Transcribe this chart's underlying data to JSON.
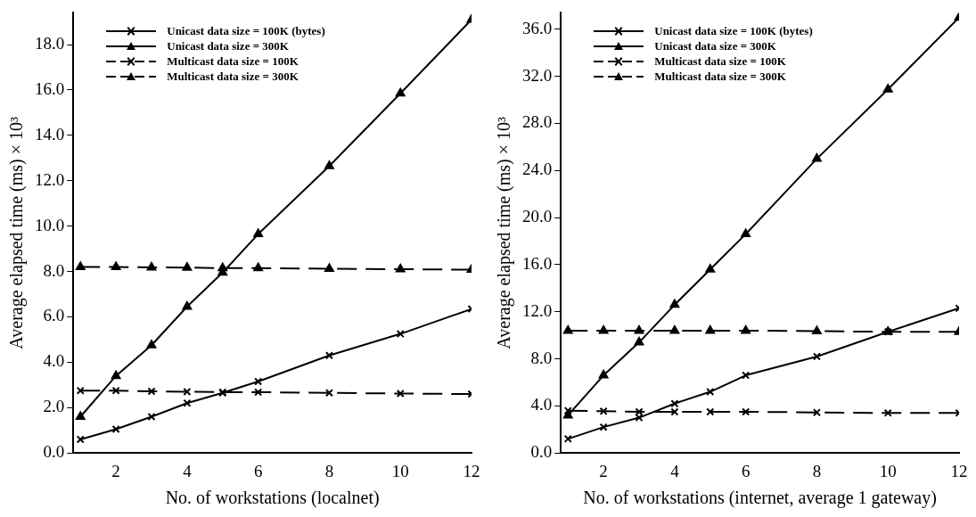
{
  "chart_data": [
    {
      "type": "line",
      "xlabel": "No. of workstations (localnet)",
      "ylabel": "Average elapsed time (ms) × 10³",
      "x": [
        1,
        2,
        3,
        4,
        5,
        6,
        8,
        10,
        12
      ],
      "xlim": [
        0.8,
        12
      ],
      "xticks": [
        2,
        4,
        6,
        8,
        10,
        12
      ],
      "ylim": [
        0,
        19.4
      ],
      "yticks": [
        {
          "value": 0,
          "label": "0.0"
        },
        {
          "value": 2,
          "label": "2.0"
        },
        {
          "value": 4,
          "label": "4.0"
        },
        {
          "value": 6,
          "label": "6.0"
        },
        {
          "value": 8,
          "label": "8.0"
        },
        {
          "value": 10,
          "label": "10.0"
        },
        {
          "value": 12,
          "label": "12.0"
        },
        {
          "value": 14,
          "label": "14.0"
        },
        {
          "value": 16,
          "label": "16.0"
        },
        {
          "value": 18,
          "label": "18.0"
        }
      ],
      "grid": false,
      "legend": "top left",
      "series": [
        {
          "name": "Unicast data size = 100K (bytes)",
          "color": "#000000",
          "marker": "cross",
          "line_style": "solid",
          "values": [
            0.6,
            1.05,
            1.6,
            2.2,
            2.65,
            3.15,
            4.3,
            5.25,
            6.35
          ]
        },
        {
          "name": "Unicast data size = 300K",
          "color": "#000000",
          "marker": "triangle",
          "line_style": "solid",
          "values": [
            1.6,
            3.4,
            4.75,
            6.45,
            7.95,
            9.65,
            12.65,
            15.85,
            19.1
          ]
        },
        {
          "name": "Multicast data size = 100K",
          "color": "#000000",
          "marker": "cross",
          "line_style": "dashed",
          "values": [
            2.75,
            2.75,
            2.72,
            2.7,
            2.68,
            2.68,
            2.65,
            2.62,
            2.6
          ]
        },
        {
          "name": "Multicast data size = 300K",
          "color": "#000000",
          "marker": "triangle",
          "line_style": "dashed",
          "values": [
            8.2,
            8.2,
            8.18,
            8.17,
            8.15,
            8.15,
            8.12,
            8.1,
            8.08
          ]
        }
      ]
    },
    {
      "type": "line",
      "xlabel": "No. of workstations (internet, average 1 gateway)",
      "ylabel": "Average elapsed time (ms) × 10³",
      "x": [
        1,
        2,
        3,
        4,
        5,
        6,
        8,
        10,
        12
      ],
      "xlim": [
        0.8,
        12
      ],
      "xticks": [
        2,
        4,
        6,
        8,
        10,
        12
      ],
      "ylim": [
        0,
        37.4
      ],
      "yticks": [
        {
          "value": 0,
          "label": "0.0"
        },
        {
          "value": 4,
          "label": "4.0"
        },
        {
          "value": 8,
          "label": "8.0"
        },
        {
          "value": 12,
          "label": "12.0"
        },
        {
          "value": 16,
          "label": "16.0"
        },
        {
          "value": 20,
          "label": "20.0"
        },
        {
          "value": 24,
          "label": "24.0"
        },
        {
          "value": 28,
          "label": "28.0"
        },
        {
          "value": 32,
          "label": "32.0"
        },
        {
          "value": 36,
          "label": "36.0"
        }
      ],
      "grid": false,
      "legend": "top left",
      "series": [
        {
          "name": "Unicast data size = 100K (bytes)",
          "color": "#000000",
          "marker": "cross",
          "line_style": "solid",
          "values": [
            1.2,
            2.2,
            3.0,
            4.2,
            5.2,
            6.6,
            8.2,
            10.3,
            12.3
          ]
        },
        {
          "name": "Unicast data size = 300K",
          "color": "#000000",
          "marker": "triangle",
          "line_style": "solid",
          "values": [
            3.2,
            6.6,
            9.4,
            12.6,
            15.6,
            18.6,
            25.0,
            30.9,
            37.0
          ]
        },
        {
          "name": "Multicast data size = 100K",
          "color": "#000000",
          "marker": "cross",
          "line_style": "dashed",
          "values": [
            3.6,
            3.55,
            3.5,
            3.5,
            3.5,
            3.5,
            3.45,
            3.4,
            3.4
          ]
        },
        {
          "name": "Multicast data size = 300K",
          "color": "#000000",
          "marker": "triangle",
          "line_style": "dashed",
          "values": [
            10.4,
            10.4,
            10.4,
            10.4,
            10.4,
            10.4,
            10.35,
            10.3,
            10.3
          ]
        }
      ]
    }
  ]
}
